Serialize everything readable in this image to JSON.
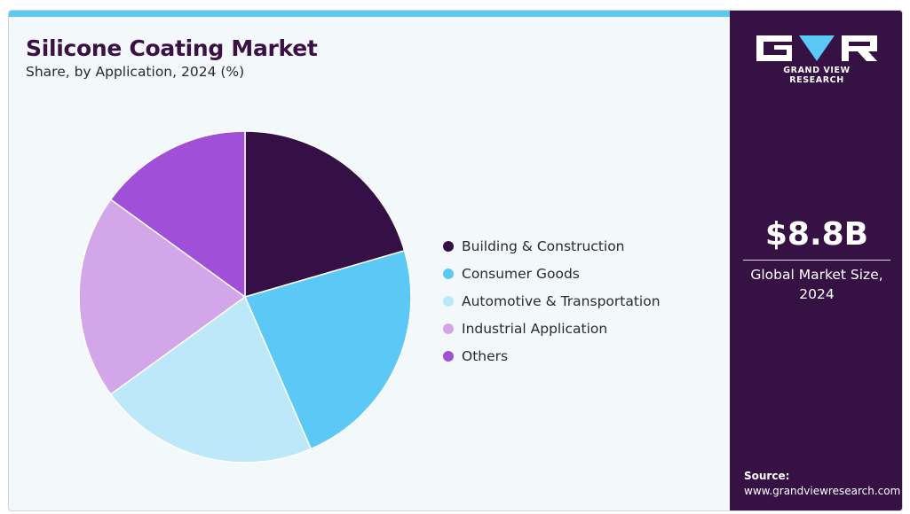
{
  "header": {
    "title": "Silicone Coating Market",
    "subtitle": "Share, by Application, 2024 (%)"
  },
  "chart_data": {
    "type": "pie",
    "categories": [
      "Building & Construction",
      "Consumer Goods",
      "Automotive & Transportation",
      "Industrial Application",
      "Others"
    ],
    "values": [
      20.5,
      23.0,
      21.5,
      20.0,
      15.0
    ],
    "colors": [
      "#351046",
      "#5bc8f5",
      "#bde8f9",
      "#d3a6e9",
      "#a050d8"
    ],
    "start": "12 o'clock",
    "direction": "clockwise"
  },
  "sidebar": {
    "logo_text": "GRAND VIEW RESEARCH",
    "market_size": "$8.8B",
    "market_size_label": "Global Market Size, 2024",
    "source_label": "Source:",
    "source_url": "www.grandviewresearch.com"
  },
  "colors": {
    "accent_bar": "#5bc8f5",
    "sidebar_bg": "#361143",
    "title": "#3a1045"
  }
}
